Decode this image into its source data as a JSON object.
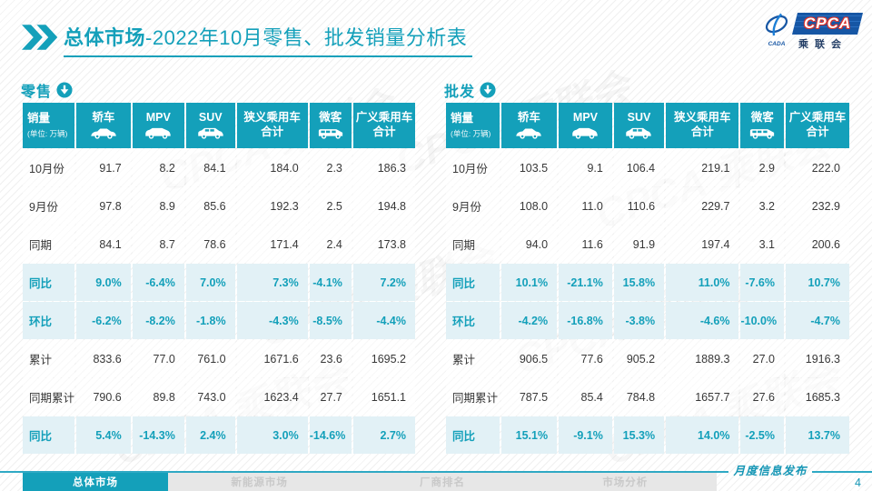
{
  "header": {
    "title_bold": "总体市场",
    "title_rest": "-2022年10月零售、批发销量分析表",
    "logo": {
      "cpca": "CPCA",
      "cada": "CADA",
      "cn": "乘联会"
    }
  },
  "columns": {
    "first": {
      "label": "销量",
      "unit": "(单位: 万辆)"
    },
    "list": [
      {
        "label": "轿车",
        "icon": "sedan-car-icon"
      },
      {
        "label": "MPV",
        "icon": "mpv-car-icon"
      },
      {
        "label": "SUV",
        "icon": "suv-car-icon"
      },
      {
        "label": "狭义乘用车",
        "label2": "合计"
      },
      {
        "label": "微客",
        "icon": "microvan-icon"
      },
      {
        "label": "广义乘用车",
        "label2": "合计"
      }
    ]
  },
  "tables": {
    "retail": {
      "label": "零售",
      "rows": [
        {
          "label": "10月份",
          "highlight": false,
          "values": [
            "91.7",
            "8.2",
            "84.1",
            "184.0",
            "2.3",
            "186.3"
          ]
        },
        {
          "label": "9月份",
          "highlight": false,
          "values": [
            "97.8",
            "8.9",
            "85.6",
            "192.3",
            "2.5",
            "194.8"
          ]
        },
        {
          "label": "同期",
          "highlight": false,
          "values": [
            "84.1",
            "8.7",
            "78.6",
            "171.4",
            "2.4",
            "173.8"
          ]
        },
        {
          "label": "同比",
          "highlight": true,
          "values": [
            "9.0%",
            "-6.4%",
            "7.0%",
            "7.3%",
            "-4.1%",
            "7.2%"
          ]
        },
        {
          "label": "环比",
          "highlight": true,
          "values": [
            "-6.2%",
            "-8.2%",
            "-1.8%",
            "-4.3%",
            "-8.5%",
            "-4.4%"
          ]
        },
        {
          "label": "累计",
          "highlight": false,
          "values": [
            "833.6",
            "77.0",
            "761.0",
            "1671.6",
            "23.6",
            "1695.2"
          ]
        },
        {
          "label": "同期累计",
          "highlight": false,
          "values": [
            "790.6",
            "89.8",
            "743.0",
            "1623.4",
            "27.7",
            "1651.1"
          ]
        },
        {
          "label": "同比",
          "highlight": true,
          "values": [
            "5.4%",
            "-14.3%",
            "2.4%",
            "3.0%",
            "-14.6%",
            "2.7%"
          ]
        }
      ]
    },
    "wholesale": {
      "label": "批发",
      "rows": [
        {
          "label": "10月份",
          "highlight": false,
          "values": [
            "103.5",
            "9.1",
            "106.4",
            "219.1",
            "2.9",
            "222.0"
          ]
        },
        {
          "label": "9月份",
          "highlight": false,
          "values": [
            "108.0",
            "11.0",
            "110.6",
            "229.7",
            "3.2",
            "232.9"
          ]
        },
        {
          "label": "同期",
          "highlight": false,
          "values": [
            "94.0",
            "11.6",
            "91.9",
            "197.4",
            "3.1",
            "200.6"
          ]
        },
        {
          "label": "同比",
          "highlight": true,
          "values": [
            "10.1%",
            "-21.1%",
            "15.8%",
            "11.0%",
            "-7.6%",
            "10.7%"
          ]
        },
        {
          "label": "环比",
          "highlight": true,
          "values": [
            "-4.2%",
            "-16.8%",
            "-3.8%",
            "-4.6%",
            "-10.0%",
            "-4.7%"
          ]
        },
        {
          "label": "累计",
          "highlight": false,
          "values": [
            "906.5",
            "77.6",
            "905.2",
            "1889.3",
            "27.0",
            "1916.3"
          ]
        },
        {
          "label": "同期累计",
          "highlight": false,
          "values": [
            "787.5",
            "85.4",
            "784.8",
            "1657.7",
            "27.6",
            "1685.3"
          ]
        },
        {
          "label": "同比",
          "highlight": true,
          "values": [
            "15.1%",
            "-9.1%",
            "15.3%",
            "14.0%",
            "-2.5%",
            "13.7%"
          ]
        }
      ]
    }
  },
  "footer": {
    "tabs": [
      {
        "label": "总体市场",
        "active": true
      },
      {
        "label": "新能源市场",
        "active": false
      },
      {
        "label": "厂商排名",
        "active": false
      },
      {
        "label": "市场分析",
        "active": false
      }
    ],
    "publish_label": "月度信息发布",
    "page_number": "4"
  },
  "watermark_text": "CPCA 乘联会",
  "colors": {
    "accent": "#14A0BA",
    "highlight_row_bg": "#E2F1F6",
    "logo_blue": "#1656A4",
    "logo_red": "#D9312B",
    "value_text": "#383838",
    "inactive_tab_text": "#C9C9C9"
  }
}
